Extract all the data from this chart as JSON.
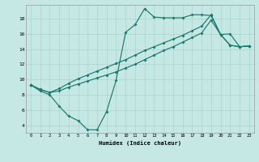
{
  "title": "",
  "xlabel": "Humidex (Indice chaleur)",
  "bg_color": "#c5e8e5",
  "line_color": "#1a7a6e",
  "grid_color": "#aad4cf",
  "xlim": [
    -0.5,
    23.5
  ],
  "ylim": [
    3.0,
    19.8
  ],
  "xticks": [
    0,
    1,
    2,
    3,
    4,
    5,
    6,
    7,
    8,
    9,
    10,
    11,
    12,
    13,
    14,
    15,
    16,
    17,
    18,
    19,
    20,
    21,
    22,
    23
  ],
  "yticks": [
    4,
    6,
    8,
    10,
    12,
    14,
    16,
    18
  ],
  "line1_x": [
    0,
    1,
    2,
    3,
    4,
    5,
    6,
    7,
    8,
    9,
    10,
    11,
    12,
    13,
    14,
    15,
    16,
    17,
    18,
    19,
    20,
    21,
    22,
    23
  ],
  "line1_y": [
    9.3,
    8.5,
    8.0,
    6.5,
    5.2,
    4.6,
    3.4,
    3.4,
    5.8,
    9.9,
    16.2,
    17.2,
    19.3,
    18.2,
    18.1,
    18.1,
    18.1,
    18.5,
    18.5,
    18.4,
    15.9,
    14.5,
    14.3,
    14.4
  ],
  "line2_x": [
    0,
    1,
    2,
    3,
    4,
    5,
    6,
    7,
    8,
    9,
    10,
    11,
    12,
    13,
    14,
    15,
    16,
    17,
    18,
    19,
    20,
    21,
    22,
    23
  ],
  "line2_y": [
    9.3,
    8.7,
    8.3,
    8.5,
    9.0,
    9.4,
    9.8,
    10.2,
    10.6,
    11.0,
    11.5,
    12.0,
    12.6,
    13.2,
    13.8,
    14.3,
    14.9,
    15.5,
    16.1,
    17.8,
    15.9,
    14.5,
    14.3,
    14.4
  ],
  "line3_x": [
    0,
    1,
    2,
    3,
    4,
    5,
    6,
    7,
    8,
    9,
    10,
    11,
    12,
    13,
    14,
    15,
    16,
    17,
    18,
    19,
    20,
    21,
    22,
    23
  ],
  "line3_y": [
    9.3,
    8.7,
    8.3,
    8.8,
    9.5,
    10.1,
    10.6,
    11.1,
    11.6,
    12.1,
    12.6,
    13.2,
    13.8,
    14.3,
    14.8,
    15.3,
    15.8,
    16.4,
    17.0,
    18.5,
    15.9,
    16.0,
    14.3,
    14.4
  ]
}
